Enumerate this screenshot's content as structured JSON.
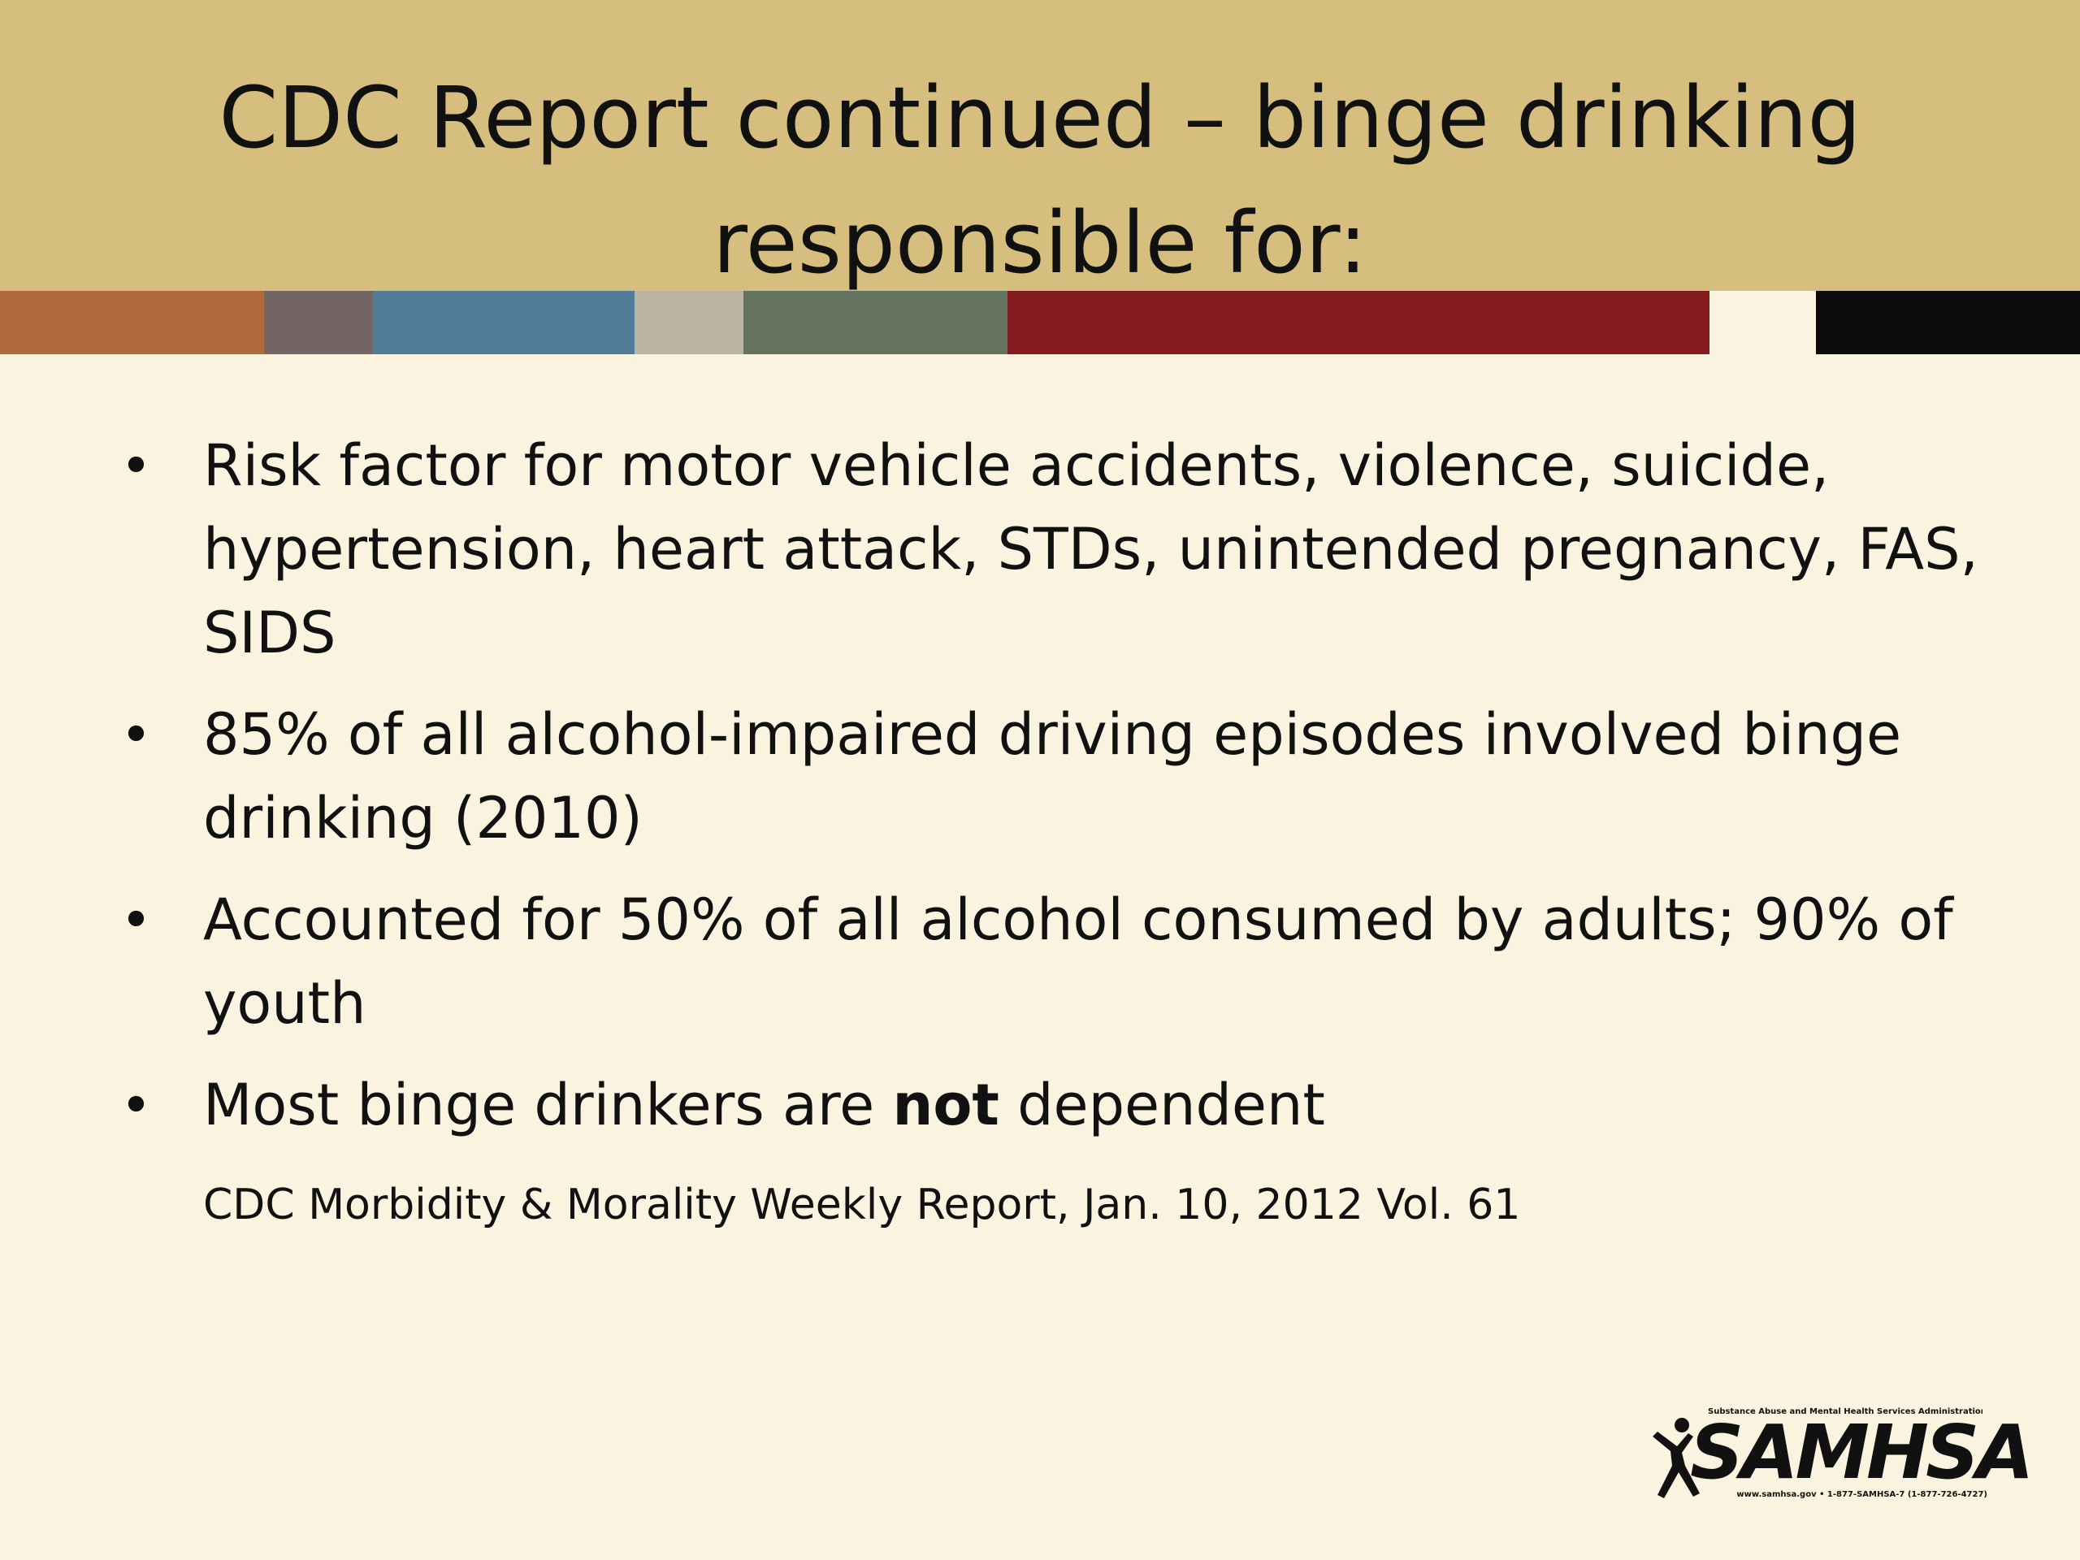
{
  "slide": {
    "title": "CDC Report continued – binge drinking responsible for:",
    "bullets": [
      {
        "marker": "•",
        "text": "Risk factor for motor vehicle accidents, violence, suicide, hypertension, heart attack, STDs, unintended pregnancy, FAS, SIDS"
      },
      {
        "marker": "•",
        "text": "85% of all alcohol-impaired driving episodes involved binge drinking (2010)"
      },
      {
        "marker": "•",
        "text": "Accounted for 50% of all alcohol consumed by adults; 90% of youth"
      },
      {
        "marker": "•",
        "before": "Most binge drinkers are ",
        "bold": "not",
        "after": " dependent"
      }
    ],
    "citation": "CDC Morbidity & Morality Weekly Report, Jan. 10, 2012 Vol. 61"
  },
  "logo": {
    "tagline": "Substance Abuse and Mental Health Services Administration",
    "wordmark": "SAMHSA",
    "contact": "www.samhsa.gov • 1-877-SAMHSA-7 (1-877-726-4727)",
    "icon": "person-figure-icon"
  },
  "colors": {
    "title_band": "#d5be7e",
    "background": "#f9f3df",
    "strip": [
      "#b06a3b",
      "#736466",
      "#527b97",
      "#bdb5a4",
      "#637360",
      "#841c1f",
      "#f9f3df",
      "#0b0b0b"
    ]
  }
}
